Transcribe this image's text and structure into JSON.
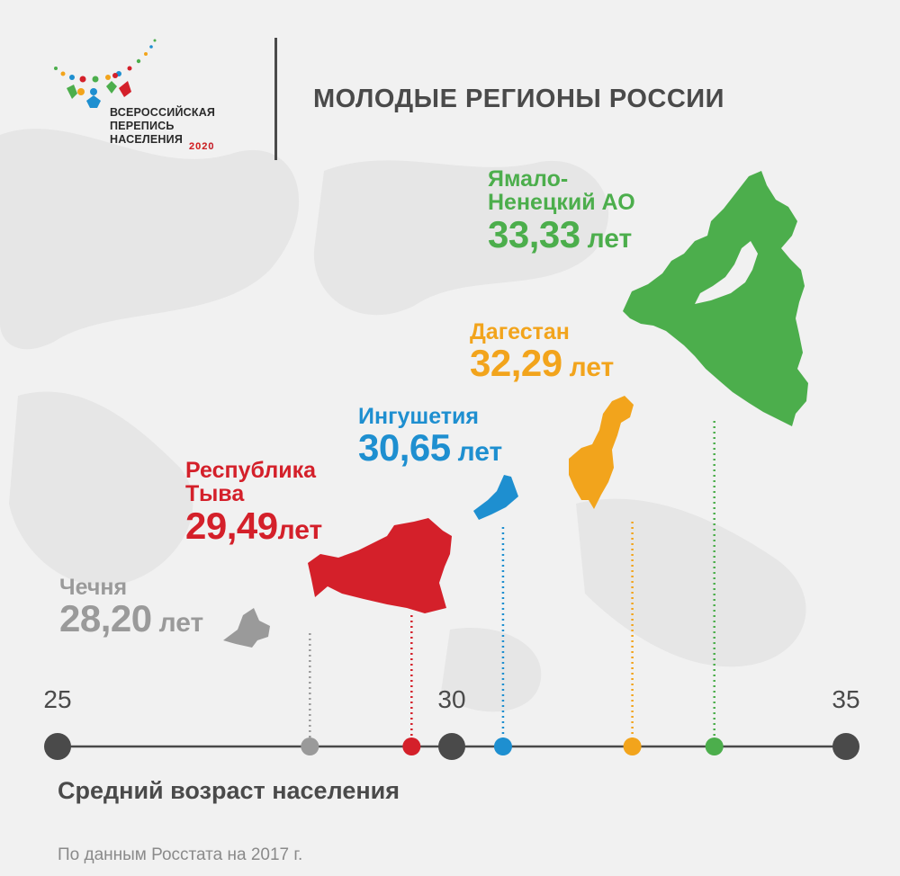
{
  "header": {
    "logo_lines": [
      "ВСЕРОССИЙСКАЯ",
      "ПЕРЕПИСЬ",
      "НАСЕЛЕНИЯ"
    ],
    "logo_year": "2020",
    "title": "МОЛОДЫЕ РЕГИОНЫ РОССИИ"
  },
  "footer": {
    "source": "По данным Росстата на 2017 г."
  },
  "chart_data": {
    "type": "scatter",
    "title": "МОЛОДЫЕ РЕГИОНЫ РОССИИ",
    "xlabel": "Средний возраст населения",
    "ylabel": "",
    "xlim": [
      25,
      35
    ],
    "ticks": [
      "25",
      "30",
      "35"
    ],
    "unit": "лет",
    "points": [
      {
        "name": "Чечня",
        "value": 28.2,
        "value_label": "28,20",
        "color": "#9a9a9a"
      },
      {
        "name": "Республика Тыва",
        "name_lines": [
          "Республика",
          "Тыва"
        ],
        "value": 29.49,
        "value_label": "29,49",
        "color": "#d4202a"
      },
      {
        "name": "Ингушетия",
        "value": 30.65,
        "value_label": "30,65",
        "color": "#1e8fd0"
      },
      {
        "name": "Дагестан",
        "value": 32.29,
        "value_label": "32,29",
        "color": "#f2a41c"
      },
      {
        "name": "Ямало-Ненецкий АО",
        "name_lines": [
          "Ямало-",
          "Ненецкий АО"
        ],
        "value": 33.33,
        "value_label": "33,33",
        "color": "#4cae4c"
      }
    ],
    "colors": {
      "axis": "#4a4a4a",
      "major_dot": "#4a4a4a"
    }
  }
}
